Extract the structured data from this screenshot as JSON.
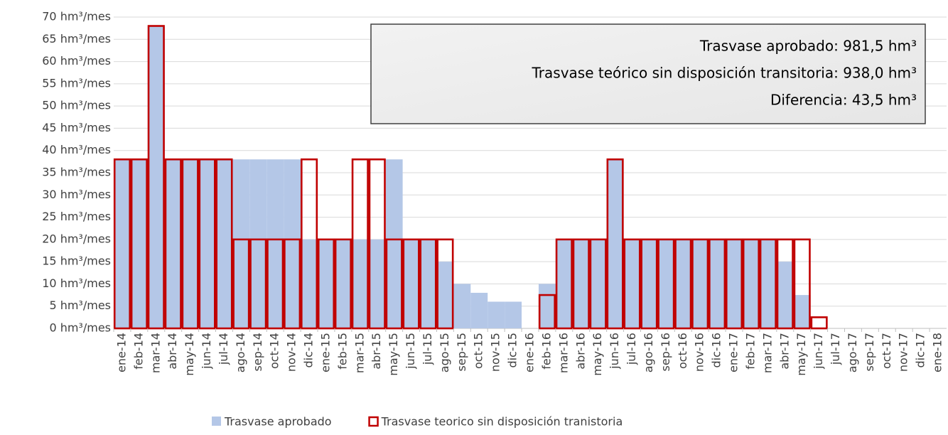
{
  "chart_data": {
    "type": "bar",
    "categories": [
      "ene-14",
      "feb-14",
      "mar-14",
      "abr-14",
      "may-14",
      "jun-14",
      "jul-14",
      "ago-14",
      "sep-14",
      "oct-14",
      "nov-14",
      "dic-14",
      "ene-15",
      "feb-15",
      "mar-15",
      "abr-15",
      "may-15",
      "jun-15",
      "jul-15",
      "ago-15",
      "sep-15",
      "oct-15",
      "nov-15",
      "dic-15",
      "ene-16",
      "feb-16",
      "mar-16",
      "abr-16",
      "may-16",
      "jun-16",
      "jul-16",
      "ago-16",
      "sep-16",
      "oct-16",
      "nov-16",
      "dic-16",
      "ene-17",
      "feb-17",
      "mar-17",
      "abr-17",
      "may-17",
      "jun-17",
      "jul-17",
      "ago-17",
      "sep-17",
      "oct-17",
      "nov-17",
      "dic-17",
      "ene-18"
    ],
    "series": [
      {
        "name": "Trasvase aprobado",
        "color": "#b4c7e7",
        "style": "filled",
        "values": [
          38,
          38,
          68,
          38,
          38,
          38,
          38,
          38,
          38,
          38,
          38,
          20,
          20,
          20,
          20,
          20,
          38,
          20,
          20,
          15,
          10,
          8,
          6,
          6,
          0,
          10,
          20,
          20,
          20,
          38,
          20,
          20,
          20,
          20,
          20,
          20,
          20,
          20,
          20,
          15,
          7.5,
          0,
          0,
          0,
          0,
          0,
          0,
          0,
          0
        ]
      },
      {
        "name": "Trasvase teorico sin disposición tranistoria",
        "color": "#c00000",
        "style": "outline",
        "values": [
          38,
          38,
          68,
          38,
          38,
          38,
          38,
          20,
          20,
          20,
          20,
          38,
          20,
          20,
          38,
          38,
          20,
          20,
          20,
          20,
          0,
          0,
          0,
          0,
          0,
          7.5,
          20,
          20,
          20,
          38,
          20,
          20,
          20,
          20,
          20,
          20,
          20,
          20,
          20,
          20,
          20,
          2.5,
          0,
          0,
          0,
          0,
          0,
          0,
          0
        ]
      }
    ],
    "annotations": [
      "Trasvase aprobado: 981,5 hm³",
      "Trasvase teórico sin disposición transitoria: 938,0 hm³",
      "Diferencia: 43,5 hm³"
    ],
    "ylim": [
      0,
      70
    ],
    "yticks": [
      {
        "value": 0,
        "label": "0 hm³/mes"
      },
      {
        "value": 5,
        "label": "5 hm³/mes"
      },
      {
        "value": 10,
        "label": "10 hm³/mes"
      },
      {
        "value": 15,
        "label": "15 hm³/mes"
      },
      {
        "value": 20,
        "label": "20 hm³/mes"
      },
      {
        "value": 25,
        "label": "25 hm³/mes"
      },
      {
        "value": 30,
        "label": "30 hm³/mes"
      },
      {
        "value": 35,
        "label": "35 hm³/mes"
      },
      {
        "value": 40,
        "label": "40 hm³/mes"
      },
      {
        "value": 45,
        "label": "45 hm³/mes"
      },
      {
        "value": 50,
        "label": "50 hm³/mes"
      },
      {
        "value": 55,
        "label": "55 hm³/mes"
      },
      {
        "value": 60,
        "label": "60 hm³/mes"
      },
      {
        "value": 65,
        "label": "65 hm³/mes"
      },
      {
        "value": 70,
        "label": "70 hm³/mes"
      }
    ],
    "grid": true,
    "legend": "bottom"
  }
}
